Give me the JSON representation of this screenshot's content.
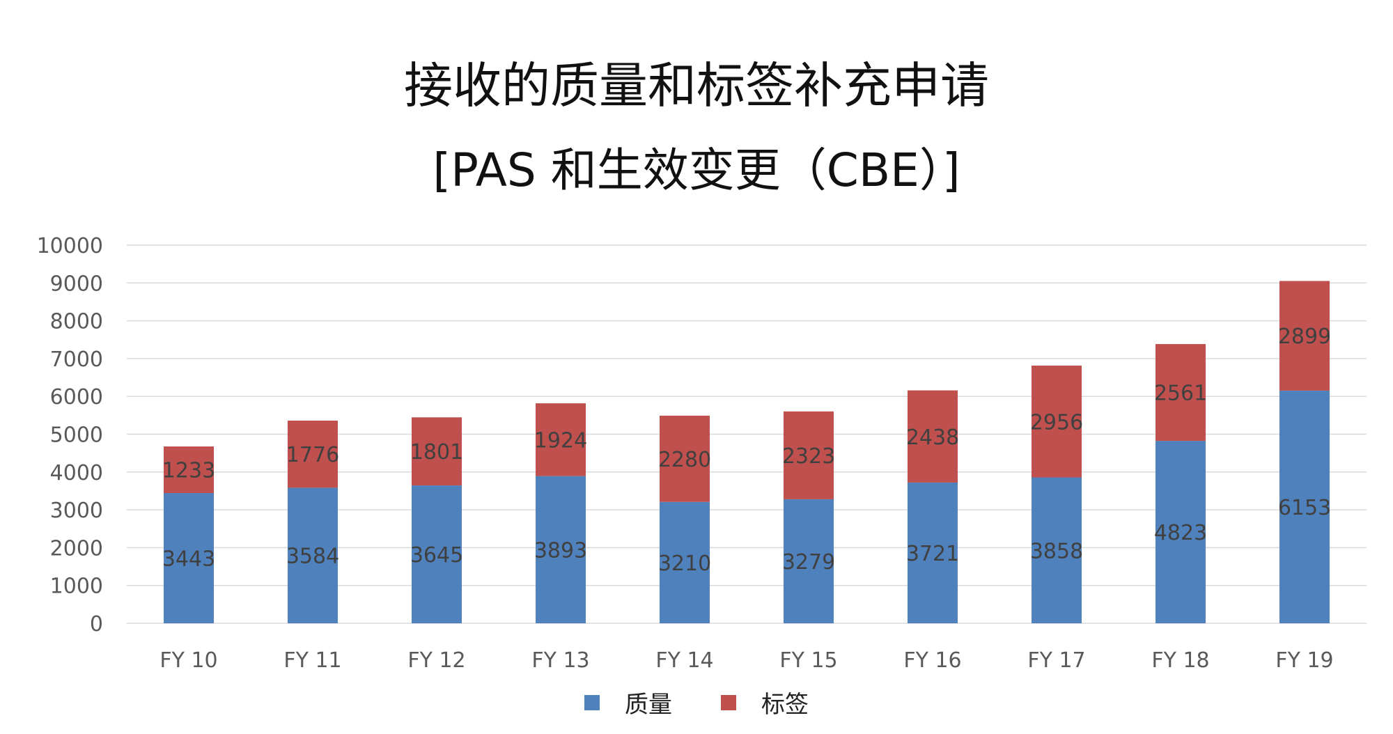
{
  "title_line1": "接收的质量和标签补充申请",
  "title_line2": "[PAS 和生效变更（CBE）]",
  "colors": {
    "quality": "#4F81BD",
    "label": "#C0504D",
    "grid": "#D9D9D9",
    "tick_text": "#595959",
    "data_label": "#404040"
  },
  "chart_data": {
    "type": "bar",
    "stacked": true,
    "categories": [
      "FY 10",
      "FY 11",
      "FY 12",
      "FY 13",
      "FY 14",
      "FY 15",
      "FY 16",
      "FY 17",
      "FY 18",
      "FY 19"
    ],
    "series": [
      {
        "name": "质量",
        "values": [
          3443,
          3584,
          3645,
          3893,
          3210,
          3279,
          3721,
          3858,
          4823,
          6153
        ]
      },
      {
        "name": "标签",
        "values": [
          1233,
          1776,
          1801,
          1924,
          2280,
          2323,
          2438,
          2956,
          2561,
          2899
        ]
      }
    ],
    "ylim": [
      0,
      10000
    ],
    "y_ticks": [
      "0",
      "1000",
      "2000",
      "3000",
      "4000",
      "5000",
      "6000",
      "7000",
      "8000",
      "9000",
      "10000"
    ],
    "grid": true,
    "legend_position": "bottom"
  }
}
